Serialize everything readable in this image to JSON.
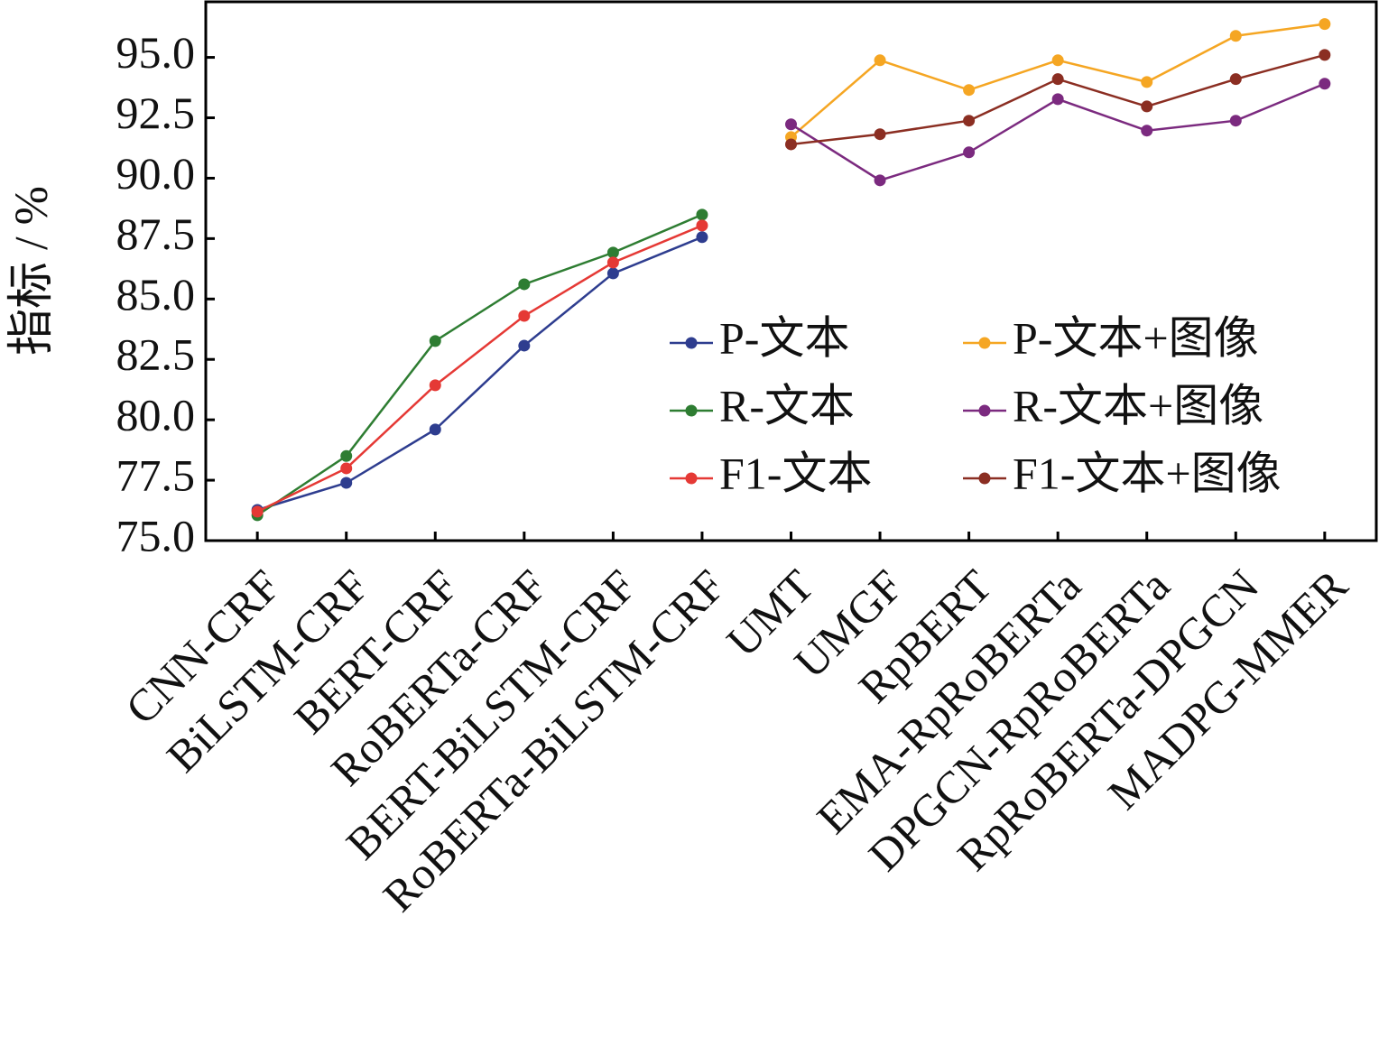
{
  "chart_data": {
    "type": "line",
    "y_label": "指标 / %",
    "categories": [
      "CNN-CRF",
      "BiLSTM-CRF",
      "BERT-CRF",
      "RoBERTa-CRF",
      "BERT-BiLSTM-CRF",
      "RoBERTa-BiLSTM-CRF",
      "UMT",
      "UMGF",
      "RpBERT",
      "EMA-RpRoBERTa",
      "DPGCN-RpRoBERTa",
      "RpRoBERTa-DPGCN",
      "MADPG-MMER"
    ],
    "series": [
      {
        "name": "P-文本",
        "color": "#2e3d8f",
        "values": [
          76.27,
          77.39,
          79.6,
          83.07,
          86.06,
          87.56,
          null,
          null,
          null,
          null,
          null,
          null,
          null
        ]
      },
      {
        "name": "R-文本",
        "color": "#2e7d32",
        "values": [
          76.05,
          78.5,
          83.26,
          85.61,
          86.92,
          88.49,
          null,
          null,
          null,
          null,
          null,
          null,
          null
        ]
      },
      {
        "name": "F1-文本",
        "color": "#e53935",
        "values": [
          76.2,
          77.99,
          81.43,
          84.3,
          86.51,
          88.04,
          null,
          null,
          null,
          null,
          null,
          null,
          null
        ]
      },
      {
        "name": "P-文本+图像",
        "color": "#f5a623",
        "values": [
          null,
          null,
          null,
          null,
          null,
          null,
          91.7,
          94.88,
          93.65,
          94.88,
          93.98,
          95.89,
          96.38
        ]
      },
      {
        "name": "R-文本+图像",
        "color": "#7b2a7f",
        "values": [
          null,
          null,
          null,
          null,
          null,
          null,
          92.23,
          89.91,
          91.07,
          93.27,
          91.97,
          92.38,
          93.91
        ]
      },
      {
        "name": "F1-文本+图像",
        "color": "#8b2e22",
        "values": [
          null,
          null,
          null,
          null,
          null,
          null,
          91.4,
          91.82,
          92.38,
          94.1,
          92.97,
          94.1,
          95.1
        ]
      }
    ],
    "ylim": [
      75,
      97.3
    ],
    "yticks": [
      {
        "value": 75,
        "label": "75.0"
      },
      {
        "value": 77.5,
        "label": "77.5"
      },
      {
        "value": 80,
        "label": "80.0"
      },
      {
        "value": 82.5,
        "label": "82.5"
      },
      {
        "value": 85,
        "label": "85.0"
      },
      {
        "value": 87.5,
        "label": "87.5"
      },
      {
        "value": 90,
        "label": "90.0"
      },
      {
        "value": 92.5,
        "label": "92.5"
      },
      {
        "value": 95,
        "label": "95.0"
      }
    ],
    "legend": "lower right",
    "grid": false
  }
}
